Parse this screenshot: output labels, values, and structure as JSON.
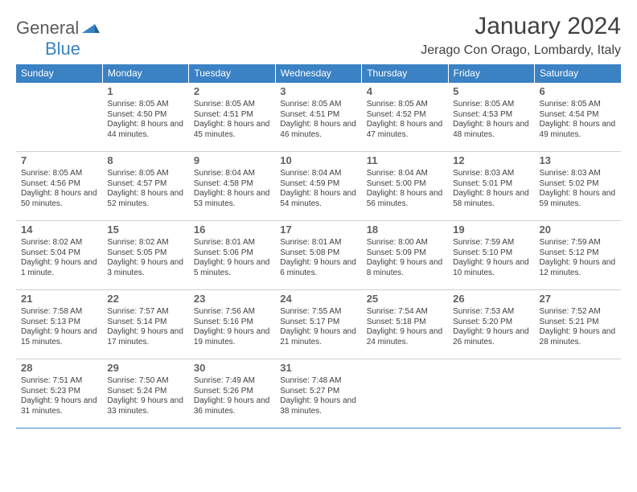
{
  "brand": {
    "word1": "General",
    "word2": "Blue"
  },
  "title": "January 2024",
  "location": "Jerago Con Orago, Lombardy, Italy",
  "colors": {
    "header_bg": "#3b82c4",
    "header_text": "#ffffff",
    "row_top_border": "#3b82c4",
    "text": "#404040"
  },
  "day_headers": [
    "Sunday",
    "Monday",
    "Tuesday",
    "Wednesday",
    "Thursday",
    "Friday",
    "Saturday"
  ],
  "weeks": [
    [
      null,
      {
        "n": "1",
        "sr": "Sunrise: 8:05 AM",
        "ss": "Sunset: 4:50 PM",
        "dl": "Daylight: 8 hours and 44 minutes."
      },
      {
        "n": "2",
        "sr": "Sunrise: 8:05 AM",
        "ss": "Sunset: 4:51 PM",
        "dl": "Daylight: 8 hours and 45 minutes."
      },
      {
        "n": "3",
        "sr": "Sunrise: 8:05 AM",
        "ss": "Sunset: 4:51 PM",
        "dl": "Daylight: 8 hours and 46 minutes."
      },
      {
        "n": "4",
        "sr": "Sunrise: 8:05 AM",
        "ss": "Sunset: 4:52 PM",
        "dl": "Daylight: 8 hours and 47 minutes."
      },
      {
        "n": "5",
        "sr": "Sunrise: 8:05 AM",
        "ss": "Sunset: 4:53 PM",
        "dl": "Daylight: 8 hours and 48 minutes."
      },
      {
        "n": "6",
        "sr": "Sunrise: 8:05 AM",
        "ss": "Sunset: 4:54 PM",
        "dl": "Daylight: 8 hours and 49 minutes."
      }
    ],
    [
      {
        "n": "7",
        "sr": "Sunrise: 8:05 AM",
        "ss": "Sunset: 4:56 PM",
        "dl": "Daylight: 8 hours and 50 minutes."
      },
      {
        "n": "8",
        "sr": "Sunrise: 8:05 AM",
        "ss": "Sunset: 4:57 PM",
        "dl": "Daylight: 8 hours and 52 minutes."
      },
      {
        "n": "9",
        "sr": "Sunrise: 8:04 AM",
        "ss": "Sunset: 4:58 PM",
        "dl": "Daylight: 8 hours and 53 minutes."
      },
      {
        "n": "10",
        "sr": "Sunrise: 8:04 AM",
        "ss": "Sunset: 4:59 PM",
        "dl": "Daylight: 8 hours and 54 minutes."
      },
      {
        "n": "11",
        "sr": "Sunrise: 8:04 AM",
        "ss": "Sunset: 5:00 PM",
        "dl": "Daylight: 8 hours and 56 minutes."
      },
      {
        "n": "12",
        "sr": "Sunrise: 8:03 AM",
        "ss": "Sunset: 5:01 PM",
        "dl": "Daylight: 8 hours and 58 minutes."
      },
      {
        "n": "13",
        "sr": "Sunrise: 8:03 AM",
        "ss": "Sunset: 5:02 PM",
        "dl": "Daylight: 8 hours and 59 minutes."
      }
    ],
    [
      {
        "n": "14",
        "sr": "Sunrise: 8:02 AM",
        "ss": "Sunset: 5:04 PM",
        "dl": "Daylight: 9 hours and 1 minute."
      },
      {
        "n": "15",
        "sr": "Sunrise: 8:02 AM",
        "ss": "Sunset: 5:05 PM",
        "dl": "Daylight: 9 hours and 3 minutes."
      },
      {
        "n": "16",
        "sr": "Sunrise: 8:01 AM",
        "ss": "Sunset: 5:06 PM",
        "dl": "Daylight: 9 hours and 5 minutes."
      },
      {
        "n": "17",
        "sr": "Sunrise: 8:01 AM",
        "ss": "Sunset: 5:08 PM",
        "dl": "Daylight: 9 hours and 6 minutes."
      },
      {
        "n": "18",
        "sr": "Sunrise: 8:00 AM",
        "ss": "Sunset: 5:09 PM",
        "dl": "Daylight: 9 hours and 8 minutes."
      },
      {
        "n": "19",
        "sr": "Sunrise: 7:59 AM",
        "ss": "Sunset: 5:10 PM",
        "dl": "Daylight: 9 hours and 10 minutes."
      },
      {
        "n": "20",
        "sr": "Sunrise: 7:59 AM",
        "ss": "Sunset: 5:12 PM",
        "dl": "Daylight: 9 hours and 12 minutes."
      }
    ],
    [
      {
        "n": "21",
        "sr": "Sunrise: 7:58 AM",
        "ss": "Sunset: 5:13 PM",
        "dl": "Daylight: 9 hours and 15 minutes."
      },
      {
        "n": "22",
        "sr": "Sunrise: 7:57 AM",
        "ss": "Sunset: 5:14 PM",
        "dl": "Daylight: 9 hours and 17 minutes."
      },
      {
        "n": "23",
        "sr": "Sunrise: 7:56 AM",
        "ss": "Sunset: 5:16 PM",
        "dl": "Daylight: 9 hours and 19 minutes."
      },
      {
        "n": "24",
        "sr": "Sunrise: 7:55 AM",
        "ss": "Sunset: 5:17 PM",
        "dl": "Daylight: 9 hours and 21 minutes."
      },
      {
        "n": "25",
        "sr": "Sunrise: 7:54 AM",
        "ss": "Sunset: 5:18 PM",
        "dl": "Daylight: 9 hours and 24 minutes."
      },
      {
        "n": "26",
        "sr": "Sunrise: 7:53 AM",
        "ss": "Sunset: 5:20 PM",
        "dl": "Daylight: 9 hours and 26 minutes."
      },
      {
        "n": "27",
        "sr": "Sunrise: 7:52 AM",
        "ss": "Sunset: 5:21 PM",
        "dl": "Daylight: 9 hours and 28 minutes."
      }
    ],
    [
      {
        "n": "28",
        "sr": "Sunrise: 7:51 AM",
        "ss": "Sunset: 5:23 PM",
        "dl": "Daylight: 9 hours and 31 minutes."
      },
      {
        "n": "29",
        "sr": "Sunrise: 7:50 AM",
        "ss": "Sunset: 5:24 PM",
        "dl": "Daylight: 9 hours and 33 minutes."
      },
      {
        "n": "30",
        "sr": "Sunrise: 7:49 AM",
        "ss": "Sunset: 5:26 PM",
        "dl": "Daylight: 9 hours and 36 minutes."
      },
      {
        "n": "31",
        "sr": "Sunrise: 7:48 AM",
        "ss": "Sunset: 5:27 PM",
        "dl": "Daylight: 9 hours and 38 minutes."
      },
      null,
      null,
      null
    ]
  ]
}
